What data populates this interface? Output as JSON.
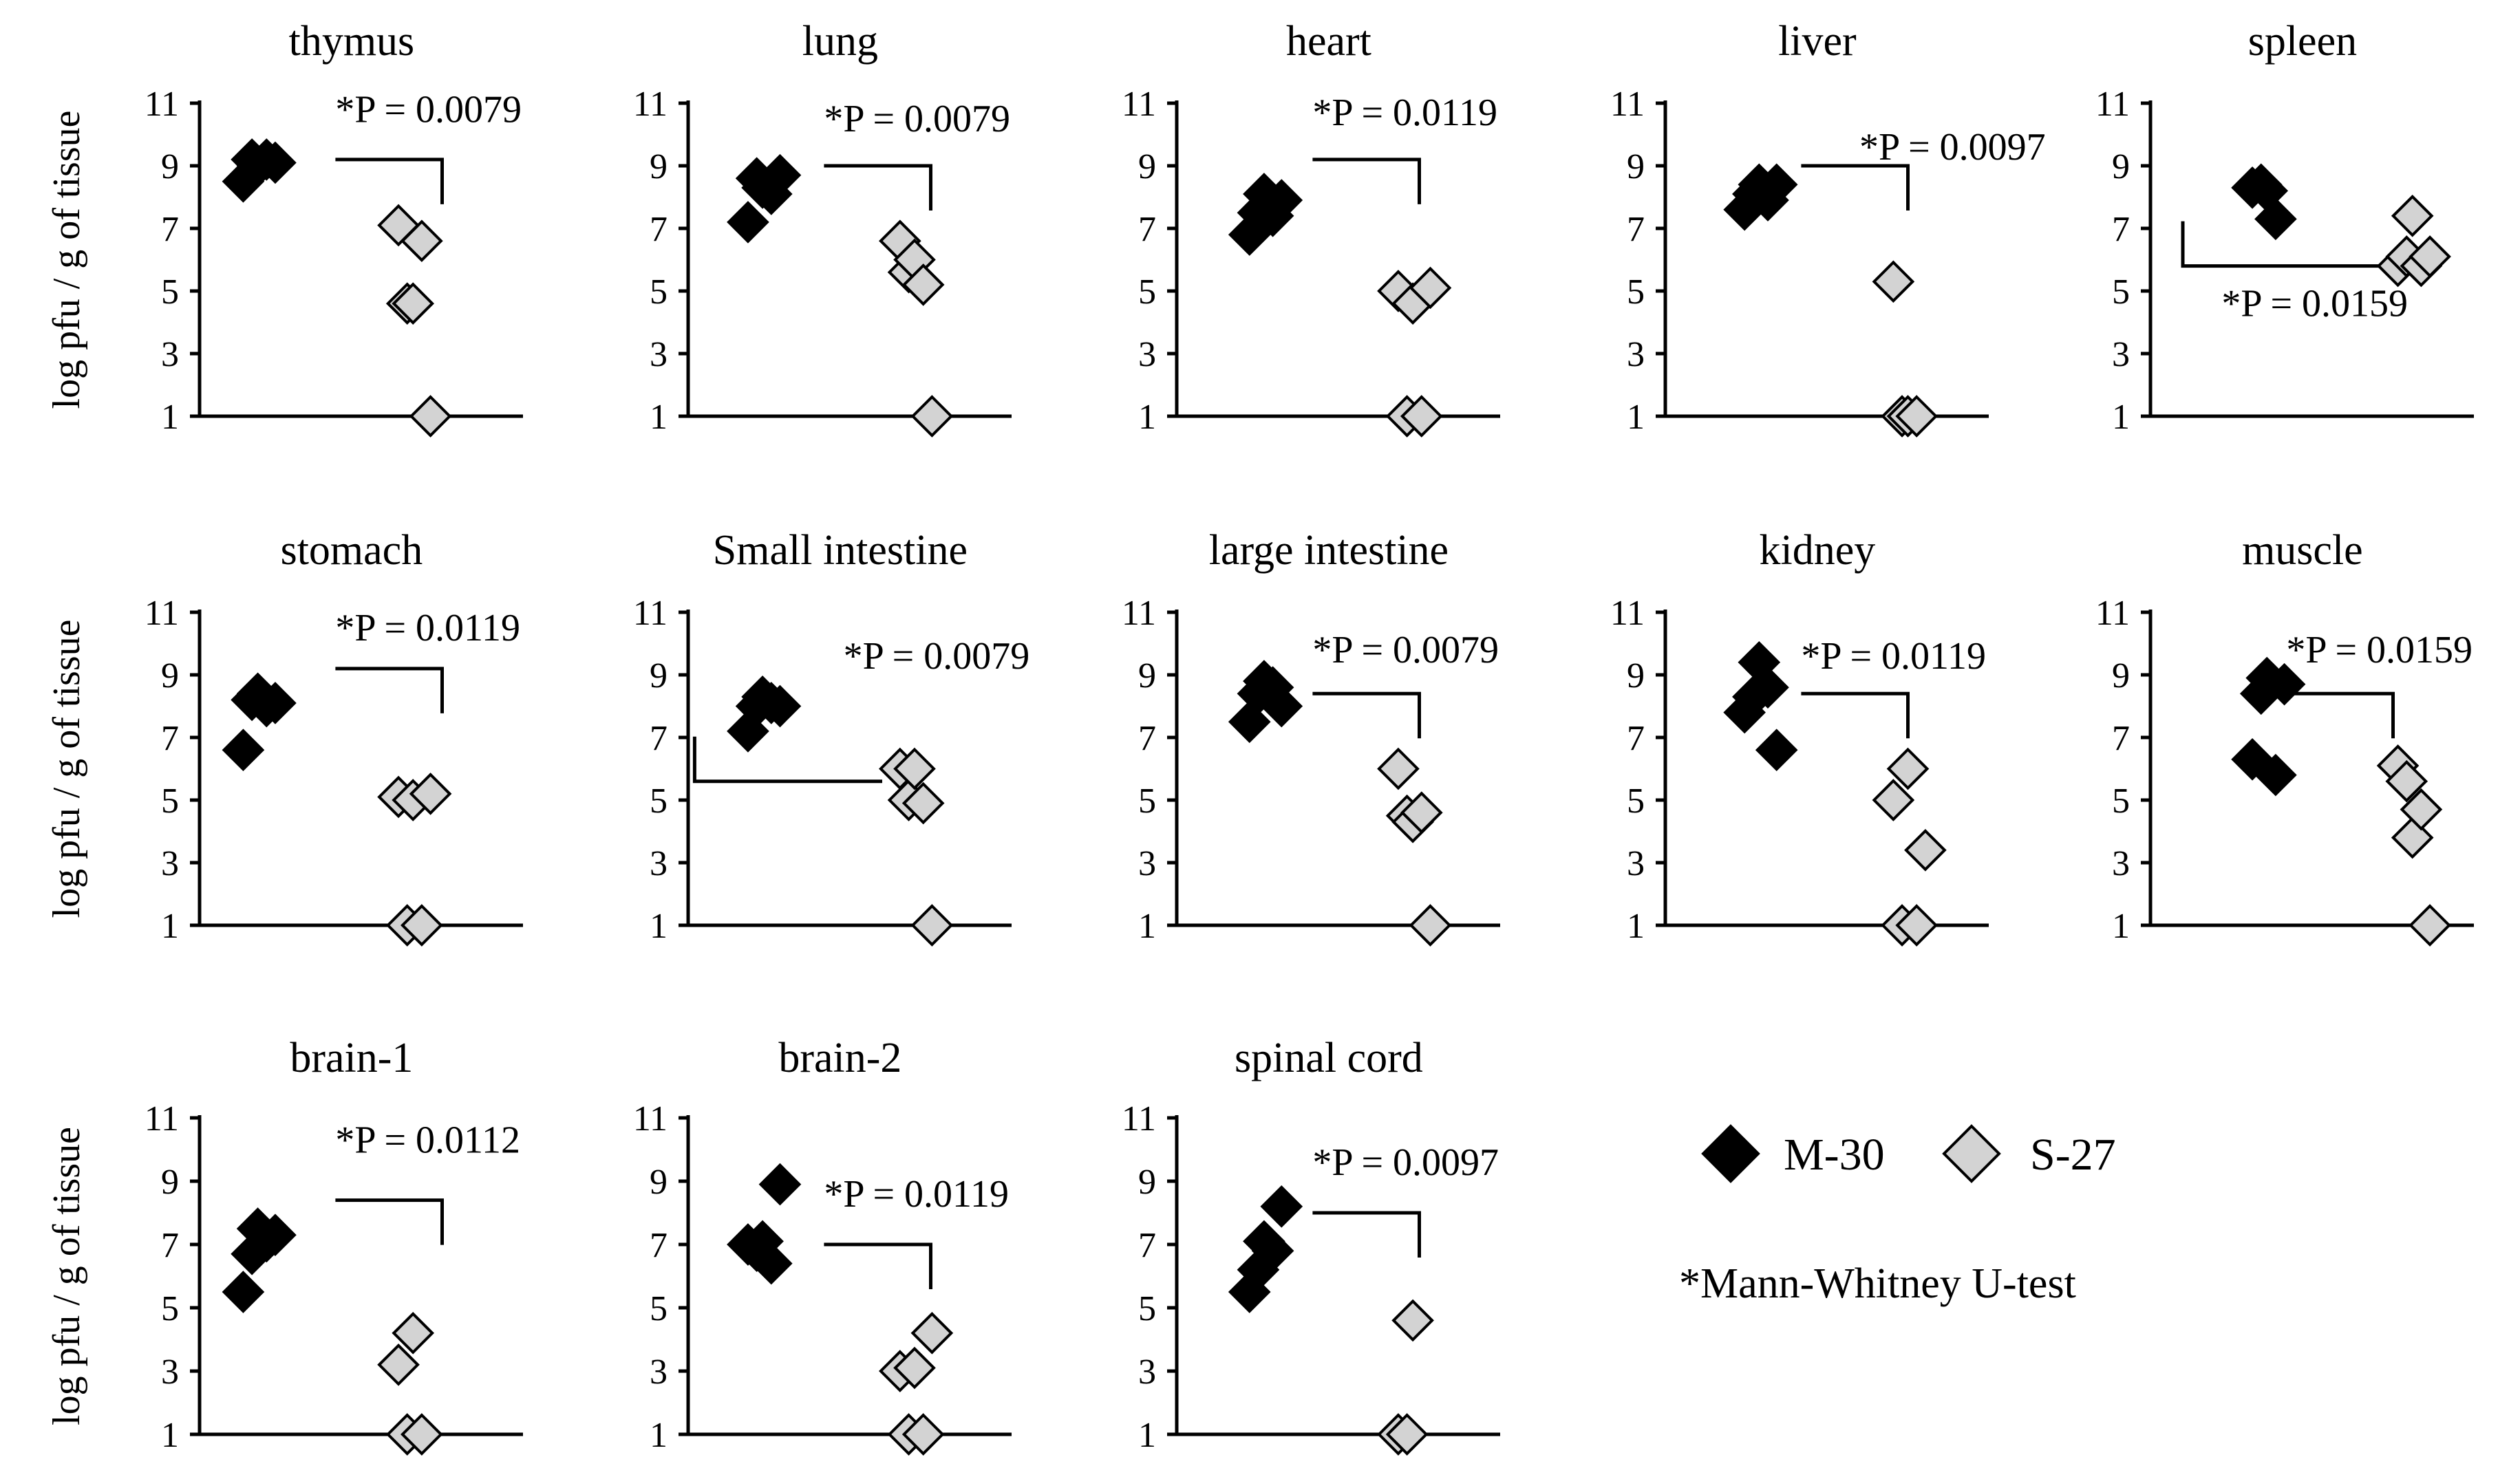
{
  "colors": {
    "m30": "#000000",
    "s27": "#d3d3d3",
    "outline": "#000000"
  },
  "legend": {
    "m30": "M-30",
    "s27": "S-27",
    "note": "*Mann-Whitney  U-test"
  },
  "chart_data": [
    {
      "type": "scatter",
      "title": "thymus",
      "ylabel": "log pfu / g of tissue",
      "ylim": [
        1,
        11
      ],
      "yticks": [
        "1",
        "3",
        "5",
        "7",
        "9",
        "11"
      ],
      "series": [
        {
          "name": "M-30",
          "values": [
            8.5,
            9.2,
            9.0,
            9.2,
            9.1
          ]
        },
        {
          "name": "S-27",
          "values": [
            7.1,
            4.6,
            4.6,
            6.6,
            1.0
          ]
        }
      ],
      "p_label": "*P = 0.0079"
    },
    {
      "type": "scatter",
      "title": "lung",
      "ylabel": "",
      "ylim": [
        1,
        11
      ],
      "yticks": [
        "1",
        "3",
        "5",
        "7",
        "9",
        "11"
      ],
      "series": [
        {
          "name": "M-30",
          "values": [
            7.2,
            8.6,
            8.3,
            8.1,
            8.7
          ]
        },
        {
          "name": "S-27",
          "values": [
            6.6,
            5.6,
            6.0,
            5.2,
            1.0
          ]
        }
      ],
      "p_label": "*P = 0.0079"
    },
    {
      "type": "scatter",
      "title": "heart",
      "ylabel": "",
      "ylim": [
        1,
        11
      ],
      "yticks": [
        "1",
        "3",
        "5",
        "7",
        "9",
        "11"
      ],
      "series": [
        {
          "name": "M-30",
          "values": [
            6.8,
            7.5,
            8.1,
            7.4,
            7.9
          ]
        },
        {
          "name": "S-27",
          "values": [
            5.0,
            1.0,
            4.6,
            1.0,
            5.1
          ]
        }
      ],
      "p_label": "*P = 0.0119"
    },
    {
      "type": "scatter",
      "title": "liver",
      "ylabel": "",
      "ylim": [
        1,
        11
      ],
      "yticks": [
        "1",
        "3",
        "5",
        "7",
        "9",
        "11"
      ],
      "series": [
        {
          "name": "M-30",
          "values": [
            7.6,
            8.1,
            8.4,
            7.9,
            8.4
          ]
        },
        {
          "name": "S-27",
          "values": [
            5.3,
            1.0,
            1.0,
            1.0
          ]
        }
      ],
      "p_label": "*P = 0.0097"
    },
    {
      "type": "scatter",
      "title": "spleen",
      "ylabel": "",
      "ylim": [
        1,
        11
      ],
      "yticks": [
        "1",
        "3",
        "5",
        "7",
        "9",
        "11"
      ],
      "series": [
        {
          "name": "M-30",
          "values": [
            8.3,
            8.4,
            8.2,
            7.3
          ]
        },
        {
          "name": "S-27",
          "values": [
            5.8,
            6.1,
            7.4,
            5.8,
            6.1
          ]
        }
      ],
      "p_label": "*P = 0.0159"
    },
    {
      "type": "scatter",
      "title": "stomach",
      "ylabel": "log pfu / g of tissue",
      "ylim": [
        1,
        11
      ],
      "yticks": [
        "1",
        "3",
        "5",
        "7",
        "9",
        "11"
      ],
      "series": [
        {
          "name": "M-30",
          "values": [
            6.6,
            8.2,
            8.4,
            8.0,
            8.1
          ]
        },
        {
          "name": "S-27",
          "values": [
            5.1,
            1.0,
            5.0,
            1.0,
            5.2
          ]
        }
      ],
      "p_label": "*P = 0.0119"
    },
    {
      "type": "scatter",
      "title": "Small intestine",
      "ylabel": "",
      "ylim": [
        1,
        11
      ],
      "yticks": [
        "1",
        "3",
        "5",
        "7",
        "9",
        "11"
      ],
      "series": [
        {
          "name": "M-30",
          "values": [
            7.2,
            8.0,
            8.3,
            8.1,
            8.0
          ]
        },
        {
          "name": "S-27",
          "values": [
            6.0,
            5.0,
            6.0,
            4.9,
            1.0
          ]
        }
      ],
      "p_label": "*P = 0.0079"
    },
    {
      "type": "scatter",
      "title": "large intestine",
      "ylabel": "",
      "ylim": [
        1,
        11
      ],
      "yticks": [
        "1",
        "3",
        "5",
        "7",
        "9",
        "11"
      ],
      "series": [
        {
          "name": "M-30",
          "values": [
            7.5,
            8.4,
            8.8,
            8.6,
            8.0
          ]
        },
        {
          "name": "S-27",
          "values": [
            6.0,
            4.5,
            4.3,
            4.6,
            1.0
          ]
        }
      ],
      "p_label": "*P = 0.0079"
    },
    {
      "type": "scatter",
      "title": "kidney",
      "ylabel": "",
      "ylim": [
        1,
        11
      ],
      "yticks": [
        "1",
        "3",
        "5",
        "7",
        "9",
        "11"
      ],
      "series": [
        {
          "name": "M-30",
          "values": [
            7.8,
            8.3,
            9.4,
            8.6,
            6.6
          ]
        },
        {
          "name": "S-27",
          "values": [
            5.0,
            1.0,
            6.0,
            1.0,
            3.4
          ]
        }
      ],
      "p_label": "*P = 0.0119"
    },
    {
      "type": "scatter",
      "title": "muscle",
      "ylabel": "",
      "ylim": [
        1,
        11
      ],
      "yticks": [
        "1",
        "3",
        "5",
        "7",
        "9",
        "11"
      ],
      "series": [
        {
          "name": "M-30",
          "values": [
            6.3,
            8.4,
            8.9,
            5.8,
            8.7
          ]
        },
        {
          "name": "S-27",
          "values": [
            6.1,
            5.6,
            3.8,
            4.7,
            1.0
          ]
        }
      ],
      "p_label": "*P = 0.0159"
    },
    {
      "type": "scatter",
      "title": "brain-1",
      "ylabel": "log pfu / g of tissue",
      "ylim": [
        1,
        11
      ],
      "yticks": [
        "1",
        "3",
        "5",
        "7",
        "9",
        "11"
      ],
      "series": [
        {
          "name": "M-30",
          "values": [
            5.5,
            6.7,
            7.5,
            7.1,
            7.3
          ]
        },
        {
          "name": "S-27",
          "values": [
            3.2,
            1.0,
            4.2,
            1.0
          ]
        }
      ],
      "p_label": "*P = 0.0112"
    },
    {
      "type": "scatter",
      "title": "brain-2",
      "ylabel": "",
      "ylim": [
        1,
        11
      ],
      "yticks": [
        "1",
        "3",
        "5",
        "7",
        "9",
        "11"
      ],
      "series": [
        {
          "name": "M-30",
          "values": [
            7.0,
            6.8,
            7.1,
            6.4,
            8.9
          ]
        },
        {
          "name": "S-27",
          "values": [
            3.0,
            1.0,
            3.1,
            1.0,
            4.2
          ]
        }
      ],
      "p_label": "*P = 0.0119"
    },
    {
      "type": "scatter",
      "title": "spinal cord",
      "ylabel": "",
      "ylim": [
        1,
        11
      ],
      "yticks": [
        "1",
        "3",
        "5",
        "7",
        "9",
        "11"
      ],
      "series": [
        {
          "name": "M-30",
          "values": [
            5.5,
            6.2,
            7.1,
            6.8,
            8.2
          ]
        },
        {
          "name": "S-27",
          "values": [
            1.0,
            1.0,
            4.6
          ]
        }
      ],
      "p_label": "*P = 0.0097"
    }
  ]
}
